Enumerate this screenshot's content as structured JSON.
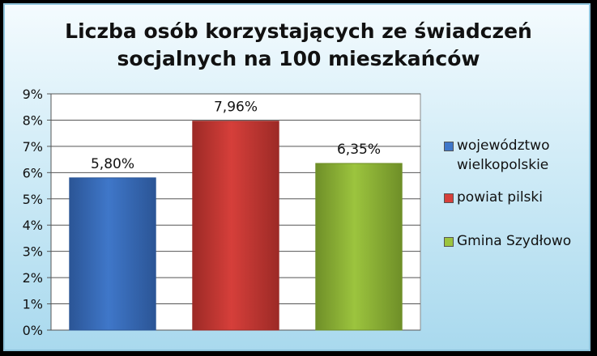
{
  "colors": {
    "series": [
      "#3f77c9",
      "#d63f3a",
      "#9cc43e"
    ],
    "series_dark": [
      "#2b5596",
      "#9c2a26",
      "#6f8f28"
    ],
    "plot_bg": "#ffffff",
    "gridline": "#555555"
  },
  "chart_data": {
    "type": "bar",
    "title_lines": [
      "Liczba osób korzystających ze świadczeń",
      "socjalnych na 100 mieszkańców"
    ],
    "categories": [
      "województwo wielkopolskie",
      "powiat pilski",
      "Gmina Szydłowo"
    ],
    "values": [
      5.8,
      7.96,
      6.35
    ],
    "value_labels": [
      "5,80%",
      "7,96%",
      "6,35%"
    ],
    "yticks": [
      "0%",
      "1%",
      "2%",
      "3%",
      "4%",
      "5%",
      "6%",
      "7%",
      "8%",
      "9%"
    ],
    "ylim": [
      0,
      9
    ],
    "grid": true,
    "legend": {
      "position": "right",
      "entries": [
        {
          "lines": [
            "województwo",
            "wielkopolskie"
          ]
        },
        {
          "lines": [
            "powiat pilski"
          ]
        },
        {
          "lines": [
            "Gmina Szydłowo"
          ]
        }
      ]
    }
  }
}
